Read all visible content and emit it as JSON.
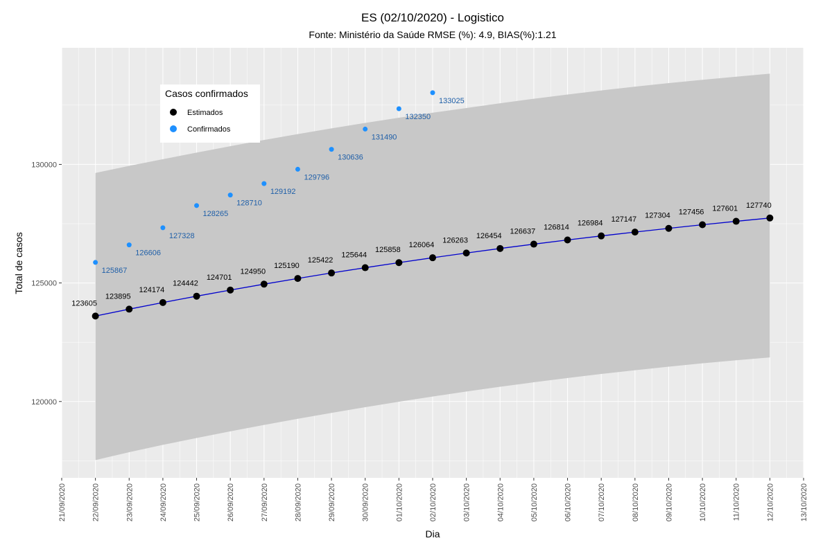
{
  "chart_data": {
    "type": "line",
    "title": "ES (02/10/2020) - Logistico",
    "subtitle": "Fonte: Ministério da Saúde RMSE (%): 4.9, BIAS(%):1.21",
    "xlabel": "Dia",
    "ylabel": "Total de casos",
    "x_ticks": [
      "21/09/2020",
      "22/09/2020",
      "23/09/2020",
      "24/09/2020",
      "25/09/2020",
      "26/09/2020",
      "27/09/2020",
      "28/09/2020",
      "29/09/2020",
      "30/09/2020",
      "01/10/2020",
      "02/10/2020",
      "03/10/2020",
      "04/10/2020",
      "05/10/2020",
      "06/10/2020",
      "07/10/2020",
      "08/10/2020",
      "09/10/2020",
      "10/10/2020",
      "11/10/2020",
      "12/10/2020",
      "13/10/2020"
    ],
    "y_ticks": [
      120000,
      125000,
      130000
    ],
    "ylim": [
      116780,
      134920
    ],
    "legend": {
      "title": "Casos confirmados",
      "position": "top-left",
      "entries": [
        {
          "label": "Estimados",
          "color": "#000000"
        },
        {
          "label": "Confirmados",
          "color": "#1e90ff"
        }
      ]
    },
    "series": [
      {
        "name": "Estimados",
        "color": "#000000",
        "line_color": "#0000cd",
        "start_index": 1,
        "values": [
          123605,
          123895,
          124174,
          124442,
          124701,
          124950,
          125190,
          125422,
          125644,
          125858,
          126064,
          126263,
          126454,
          126637,
          126814,
          126984,
          127147,
          127304,
          127456,
          127601,
          127740
        ]
      },
      {
        "name": "Confirmados",
        "color": "#1e90ff",
        "start_index": 1,
        "values": [
          125867,
          126606,
          127328,
          128265,
          128710,
          129192,
          129796,
          130636,
          131490,
          132350,
          133025
        ]
      }
    ],
    "band": {
      "start_index": 1,
      "lower": [
        117530,
        117860,
        118170,
        118460,
        118740,
        119010,
        119270,
        119520,
        119760,
        119990,
        120210,
        120420,
        120620,
        120810,
        120990,
        121160,
        121320,
        121470,
        121610,
        121740,
        121860
      ],
      "upper": [
        129640,
        129940,
        130220,
        130500,
        130770,
        131030,
        131280,
        131520,
        131750,
        131970,
        132180,
        132380,
        132580,
        132770,
        132950,
        133120,
        133280,
        133430,
        133570,
        133700,
        133830
      ]
    },
    "colors": {
      "panel": "#ebebeb",
      "grid": "#ffffff",
      "band": "#c8c8c8"
    }
  }
}
